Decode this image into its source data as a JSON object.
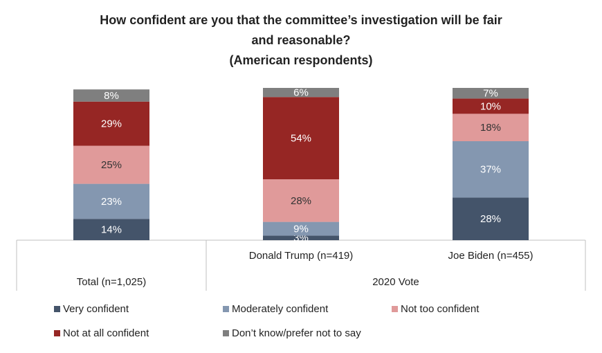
{
  "chart_data": {
    "type": "stacked_bar",
    "title": [
      "How confident are you that the committee’s investigation will be fair",
      "and reasonable?"
    ],
    "subtitle": "(American respondents)",
    "categories": [
      "Total (n=1,025)",
      "Donald Trump (n=419)",
      "Joe Biden (n=455)"
    ],
    "groups": [
      {
        "label": "2020 Vote",
        "categories": [
          1,
          2
        ]
      }
    ],
    "ylim": [
      0,
      100
    ],
    "series": [
      {
        "name": "Very confident",
        "color": "#44546a",
        "label_color": "#ffffff",
        "values": [
          14,
          3,
          28
        ],
        "value_labels": [
          "14%",
          "3%",
          "28%"
        ]
      },
      {
        "name": "Moderately confident",
        "color": "#8497b0",
        "label_color": "#ffffff",
        "values": [
          23,
          9,
          37
        ],
        "value_labels": [
          "23%",
          "9%",
          "37%"
        ]
      },
      {
        "name": "Not too confident",
        "color": "#e09a9a",
        "label_color": "#333333",
        "values": [
          25,
          28,
          18
        ],
        "value_labels": [
          "25%",
          "28%",
          "18%"
        ]
      },
      {
        "name": "Not at all confident",
        "color": "#962624",
        "label_color": "#ffffff",
        "values": [
          29,
          54,
          10
        ],
        "value_labels": [
          "29%",
          "54%",
          "10%"
        ]
      },
      {
        "name": "Don’t know/prefer not to say",
        "color": "#7f7f7f",
        "label_color": "#ffffff",
        "values": [
          8,
          6,
          7
        ],
        "value_labels": [
          "8%",
          "6%",
          "7%"
        ]
      }
    ]
  }
}
